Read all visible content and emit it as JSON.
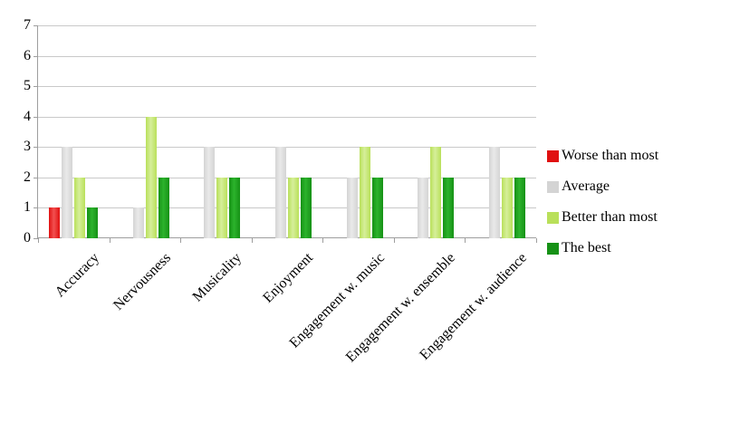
{
  "chart_data": {
    "type": "bar",
    "title": "",
    "xlabel": "",
    "ylabel": "",
    "categories": [
      "Accuracy",
      "Nervousness",
      "Musicality",
      "Enjoyment",
      "Engagement w. music",
      "Engagement w. ensemble",
      "Engagement w. audience"
    ],
    "series": [
      {
        "name": "Worse than most",
        "color": "#e01010",
        "color_light": "#f25050",
        "values": [
          1,
          0,
          0,
          0,
          0,
          0,
          0
        ]
      },
      {
        "name": "Average",
        "color": "#d4d4d4",
        "color_light": "#e9e9e9",
        "values": [
          3,
          1,
          3,
          3,
          2,
          2,
          3
        ]
      },
      {
        "name": "Better than most",
        "color": "#b9e05a",
        "color_light": "#d6ef9a",
        "values": [
          2,
          4,
          2,
          2,
          3,
          3,
          2
        ]
      },
      {
        "name": "The best",
        "color": "#169116",
        "color_light": "#2cb32c",
        "values": [
          1,
          2,
          2,
          2,
          2,
          2,
          2
        ]
      }
    ],
    "ylim": [
      0,
      7
    ],
    "ytick_interval": 1,
    "yticks": [
      0,
      1,
      2,
      3,
      4,
      5,
      6,
      7
    ],
    "grid": true,
    "legend_position": "right",
    "style": {
      "grid_color": "#c9c9c9",
      "axis_color": "#9e9e9e",
      "text_color": "#000000",
      "background": "#ffffff"
    }
  }
}
